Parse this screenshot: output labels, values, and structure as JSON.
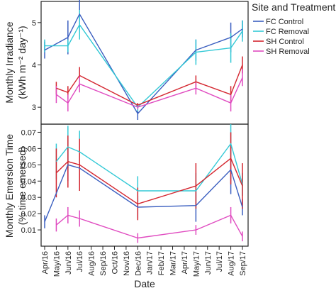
{
  "chart_data": [
    {
      "type": "line",
      "panel": "top",
      "ylabel_line1": "Monthly Irradiance",
      "ylabel_line2": "(kWh m⁻² day⁻¹)",
      "ylim": [
        2.6,
        5.5
      ],
      "yticks": [
        3,
        4,
        5
      ],
      "ytick_labels": [
        "3",
        "4",
        "5"
      ],
      "xlim": [
        0,
        17
      ],
      "x": [
        0,
        1,
        2,
        3,
        8,
        13,
        16,
        17
      ],
      "series": [
        {
          "name": "FC Control",
          "color": "#3b5fc0",
          "values": [
            4.35,
            null,
            4.65,
            5.2,
            2.85,
            4.35,
            4.65,
            4.85
          ],
          "errors": [
            0.2,
            null,
            0.4,
            0.4,
            0.15,
            0.25,
            0.35,
            0.2
          ]
        },
        {
          "name": "FC Removal",
          "color": "#33c9d6",
          "values": [
            4.45,
            null,
            4.45,
            4.95,
            3.0,
            4.3,
            4.4,
            4.8
          ],
          "errors": [
            0.15,
            null,
            0.15,
            0.35,
            0.1,
            0.3,
            0.35,
            0.25
          ]
        },
        {
          "name": "SH Control",
          "color": "#d4262f",
          "values": [
            null,
            3.45,
            3.35,
            3.75,
            3.05,
            3.6,
            3.3,
            4.0
          ],
          "errors": [
            null,
            0.15,
            0.15,
            0.2,
            0.05,
            0.15,
            0.2,
            0.2
          ]
        },
        {
          "name": "SH Removal",
          "color": "#e04bc0",
          "values": [
            null,
            3.3,
            3.1,
            3.55,
            3.0,
            3.45,
            3.1,
            3.7
          ],
          "errors": [
            null,
            0.2,
            0.2,
            0.2,
            0.05,
            0.15,
            0.2,
            0.2
          ]
        }
      ]
    },
    {
      "type": "line",
      "panel": "bottom",
      "ylabel_line1": "Monthly Emersion Time",
      "ylabel_line2": "(% time emersed)",
      "xlabel": "Date",
      "ylim": [
        0,
        0.075
      ],
      "yticks": [
        0.01,
        0.02,
        0.03,
        0.04,
        0.05,
        0.06,
        0.07
      ],
      "ytick_labels": [
        "0.01",
        "0.02",
        "0.03",
        "0.04",
        "0.05",
        "0.06",
        "0.07"
      ],
      "xlim": [
        0,
        17
      ],
      "categories": [
        "Apr/16",
        "May/16",
        "Jun/16",
        "Jul/16",
        "Aug/16",
        "Sep/16",
        "Oct/16",
        "Nov/16",
        "Dec/16",
        "Jan/17",
        "Feb/17",
        "Mar/17",
        "Apr/17",
        "May/17",
        "Jun/17",
        "Jul/17",
        "Aug/17",
        "Sep/17"
      ],
      "x": [
        0,
        1,
        2,
        3,
        8,
        13,
        16,
        17
      ],
      "series": [
        {
          "name": "FC Control",
          "color": "#3b5fc0",
          "values": [
            0.015,
            null,
            0.05,
            0.048,
            0.024,
            0.025,
            0.047,
            0.024
          ],
          "errors": [
            0.004,
            null,
            0.01,
            0.01,
            0.007,
            0.01,
            0.015,
            0.005
          ]
        },
        {
          "name": "FC Removal",
          "color": "#33c9d6",
          "values": [
            null,
            0.052,
            0.061,
            0.058,
            0.034,
            0.034,
            0.063,
            0.038
          ],
          "errors": [
            null,
            0.011,
            0.013,
            0.013,
            0.009,
            0.011,
            0.012,
            0.007
          ]
        },
        {
          "name": "SH Control",
          "color": "#d4262f",
          "values": [
            null,
            0.045,
            0.052,
            0.05,
            0.026,
            0.037,
            0.054,
            0.037
          ],
          "errors": [
            null,
            0.015,
            0.016,
            0.016,
            0.01,
            0.014,
            0.016,
            0.014
          ]
        },
        {
          "name": "SH Removal",
          "color": "#e04bc0",
          "values": [
            null,
            0.013,
            0.019,
            0.017,
            0.005,
            0.01,
            0.019,
            0.006
          ],
          "errors": [
            null,
            0.004,
            0.005,
            0.005,
            0.003,
            0.003,
            0.005,
            0.003
          ]
        }
      ]
    }
  ],
  "legend": {
    "title": "Site and Treatment",
    "placement": "right",
    "entries": [
      {
        "label": "FC Control",
        "color": "#3b5fc0"
      },
      {
        "label": "FC Removal",
        "color": "#33c9d6"
      },
      {
        "label": "SH Control",
        "color": "#d4262f"
      },
      {
        "label": "SH Removal",
        "color": "#e04bc0"
      }
    ]
  },
  "grid": false
}
